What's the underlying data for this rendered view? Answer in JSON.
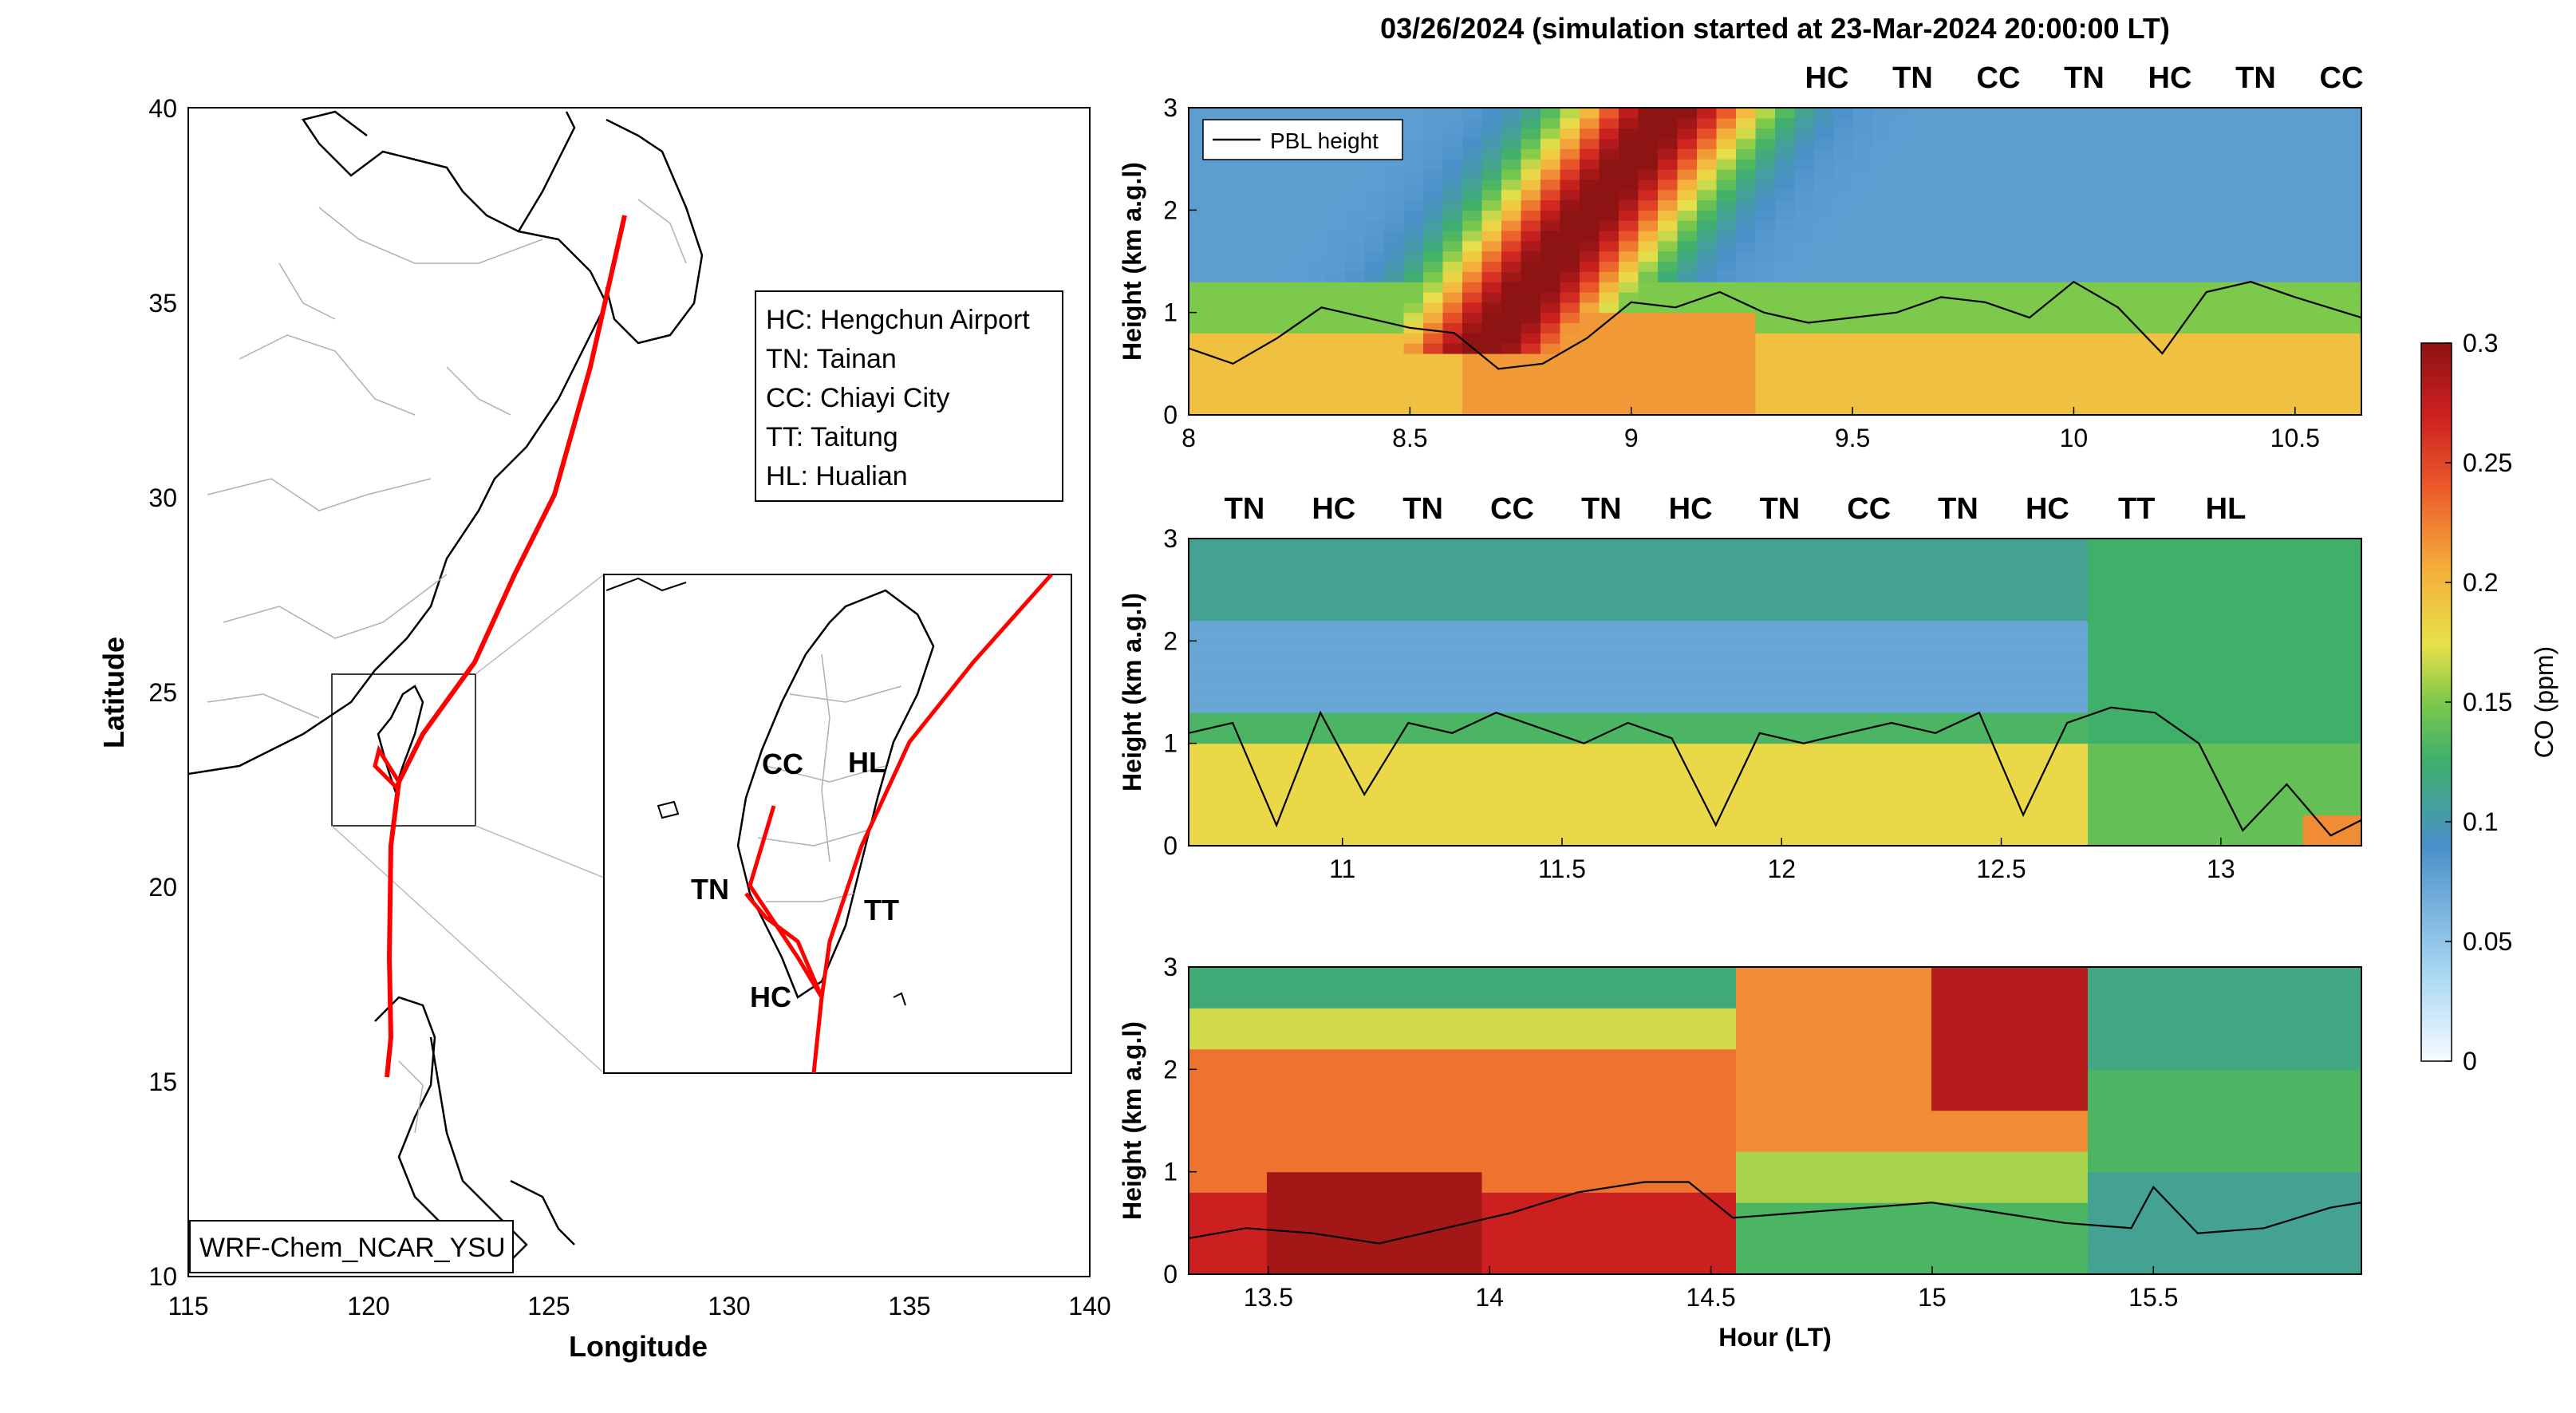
{
  "figure": {
    "title": "03/26/2024 (simulation started at 23-Mar-2024 20:00:00 LT)"
  },
  "map": {
    "xlabel": "Longitude",
    "ylabel": "Latitude",
    "xticks": [
      "115",
      "120",
      "125",
      "130",
      "135",
      "140"
    ],
    "yticks": [
      "40",
      "35",
      "30",
      "25",
      "20",
      "15",
      "10"
    ],
    "model_label": "WRF-Chem_NCAR_YSU",
    "legend": [
      "HC: Hengchun Airport",
      "TN: Tainan",
      "CC: Chiayi City",
      "TT: Taitung",
      "HL: Hualian"
    ],
    "inset_labels": [
      {
        "text": "CC",
        "color": "#E8A317"
      },
      {
        "text": "HL",
        "color": "#7B2F9E"
      },
      {
        "text": "TN",
        "color": "#A11D2E"
      },
      {
        "text": "TT",
        "color": "#3FB8E8"
      },
      {
        "text": "HC",
        "color": "#000000"
      }
    ],
    "track_color": "#FF0000"
  },
  "colors": {
    "HC": "#000000",
    "TN": "#A11D2E",
    "CC": "#E8A317",
    "TT": "#3FB8E8",
    "HL": "#7B2F9E"
  },
  "chart_data": [
    {
      "type": "heatmap",
      "variable": "CO (ppm)",
      "xlabel": "",
      "ylabel": "Height (km a.g.l)",
      "xlim": [
        8,
        10.65
      ],
      "ylim": [
        0,
        3
      ],
      "xticks": [
        "8",
        "8.5",
        "9",
        "9.5",
        "10",
        "10.5"
      ],
      "yticks": [
        "0",
        "1",
        "2",
        "3"
      ],
      "legend": "PBL height",
      "site_labels": [
        "HC",
        "TN",
        "CC",
        "TN",
        "HC",
        "TN",
        "CC"
      ],
      "pbl_height": {
        "x": [
          8.0,
          8.1,
          8.2,
          8.3,
          8.4,
          8.5,
          8.6,
          8.7,
          8.8,
          8.9,
          9.0,
          9.1,
          9.2,
          9.3,
          9.4,
          9.5,
          9.6,
          9.7,
          9.8,
          9.9,
          10.0,
          10.1,
          10.2,
          10.3,
          10.4,
          10.5,
          10.65
        ],
        "y": [
          0.65,
          0.5,
          0.75,
          1.05,
          0.95,
          0.85,
          0.8,
          0.45,
          0.5,
          0.75,
          1.1,
          1.05,
          1.2,
          1.0,
          0.9,
          0.95,
          1.0,
          1.15,
          1.1,
          0.95,
          1.3,
          1.05,
          0.6,
          1.2,
          1.3,
          1.15,
          0.95
        ]
      }
    },
    {
      "type": "heatmap",
      "variable": "CO (ppm)",
      "xlabel": "",
      "ylabel": "Height (km a.g.l)",
      "xlim": [
        10.65,
        13.32
      ],
      "ylim": [
        0,
        3
      ],
      "xticks": [
        "11",
        "11.5",
        "12",
        "12.5",
        "13"
      ],
      "yticks": [
        "0",
        "1",
        "2",
        "3"
      ],
      "site_labels": [
        "TN",
        "HC",
        "TN",
        "CC",
        "TN",
        "HC",
        "TN",
        "CC",
        "TN",
        "HC",
        "TT",
        "HL"
      ],
      "pbl_height": {
        "x": [
          10.65,
          10.75,
          10.85,
          10.95,
          11.05,
          11.15,
          11.25,
          11.35,
          11.45,
          11.55,
          11.65,
          11.75,
          11.85,
          11.95,
          12.05,
          12.15,
          12.25,
          12.35,
          12.45,
          12.55,
          12.65,
          12.75,
          12.85,
          12.95,
          13.05,
          13.15,
          13.25,
          13.32
        ],
        "y": [
          1.1,
          1.2,
          0.2,
          1.3,
          0.5,
          1.2,
          1.1,
          1.3,
          1.15,
          1.0,
          1.2,
          1.05,
          0.2,
          1.1,
          1.0,
          1.1,
          1.2,
          1.1,
          1.3,
          0.3,
          1.2,
          1.35,
          1.3,
          1.0,
          0.15,
          0.6,
          0.1,
          0.25
        ]
      }
    },
    {
      "type": "heatmap",
      "variable": "CO (ppm)",
      "xlabel": "Hour (LT)",
      "ylabel": "Height (km a.g.l)",
      "xlim": [
        13.32,
        15.97
      ],
      "ylim": [
        0,
        3
      ],
      "xticks": [
        "13.5",
        "14",
        "14.5",
        "15",
        "15.5"
      ],
      "yticks": [
        "0",
        "1",
        "2",
        "3"
      ],
      "site_labels": [],
      "pbl_height": {
        "x": [
          13.32,
          13.45,
          13.6,
          13.75,
          13.9,
          14.05,
          14.2,
          14.35,
          14.45,
          14.55,
          14.7,
          14.85,
          15.0,
          15.15,
          15.3,
          15.45,
          15.5,
          15.6,
          15.75,
          15.9,
          15.97
        ],
        "y": [
          0.35,
          0.45,
          0.4,
          0.3,
          0.45,
          0.6,
          0.8,
          0.9,
          0.9,
          0.55,
          0.6,
          0.65,
          0.7,
          0.6,
          0.5,
          0.45,
          0.85,
          0.4,
          0.45,
          0.65,
          0.7
        ]
      }
    }
  ],
  "colorbar": {
    "label": "CO (ppm)",
    "range": [
      0,
      0.3
    ],
    "ticks": [
      "0",
      "0.05",
      "0.1",
      "0.15",
      "0.2",
      "0.25",
      "0.3"
    ]
  }
}
